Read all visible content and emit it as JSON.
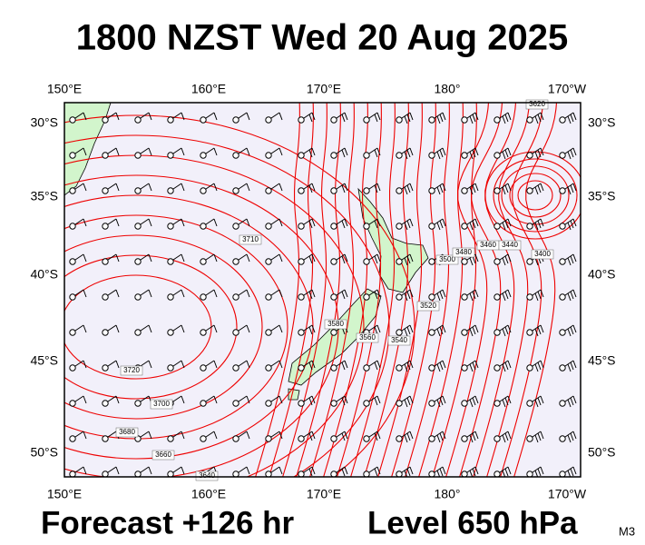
{
  "header": {
    "title": "1800 NZST Wed 20 Aug 2025"
  },
  "footer": {
    "forecast": "Forecast +126 hr",
    "level": "Level 650 hPa",
    "code": "M3"
  },
  "axes": {
    "longitudes": [
      "150°E",
      "160°E",
      "170°E",
      "180°",
      "170°W"
    ],
    "latitudes": [
      "30°S",
      "35°S",
      "40°S",
      "45°S",
      "50°S"
    ]
  },
  "contours": {
    "labels": [
      "3620",
      "3710",
      "3720",
      "3700",
      "3680",
      "3660",
      "3640",
      "3580",
      "3560",
      "3540",
      "3520",
      "3500",
      "3480",
      "3460",
      "3440",
      "3400"
    ]
  }
}
